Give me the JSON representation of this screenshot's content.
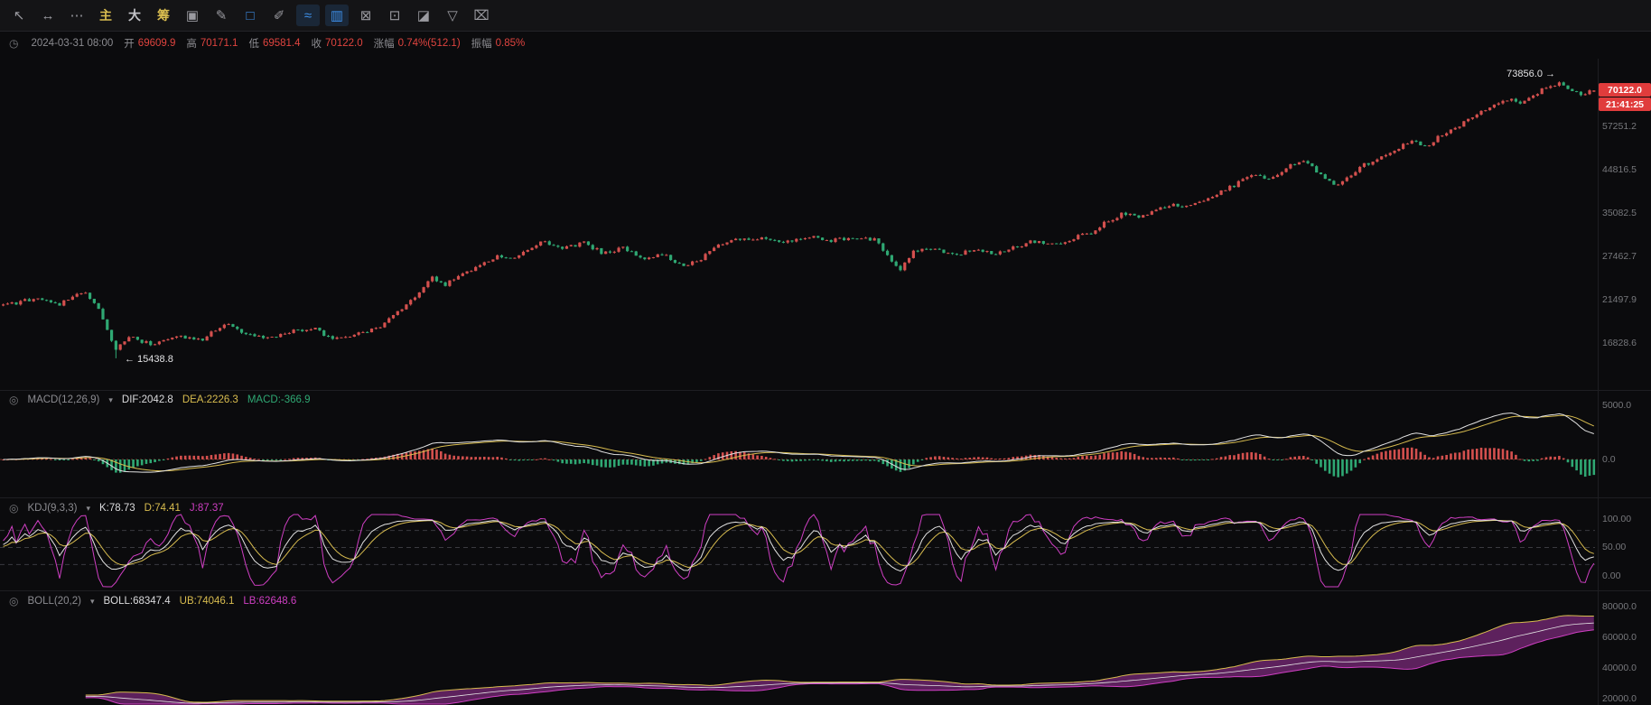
{
  "ui": {
    "eye_icon": "◎",
    "chevron_icon": "▾"
  },
  "toolbar": {
    "items": [
      {
        "name": "cursor-tool",
        "glyph": "↖"
      },
      {
        "name": "measure-tool",
        "glyph": "↔"
      },
      {
        "name": "more-tools",
        "glyph": "⋯"
      },
      {
        "name": "main-indicator-toggle",
        "glyph": "主"
      },
      {
        "name": "da-indicator-toggle",
        "glyph": "大"
      },
      {
        "name": "chips-indicator-toggle",
        "glyph": "筹"
      },
      {
        "name": "overlay-tool",
        "glyph": "▣"
      },
      {
        "name": "brush-tool",
        "glyph": "✎"
      },
      {
        "name": "select-region-tool",
        "glyph": "□"
      },
      {
        "name": "draw-line-tool",
        "glyph": "✐"
      },
      {
        "name": "wave-tool",
        "glyph": "≈"
      },
      {
        "name": "bars-tool",
        "glyph": "▥"
      },
      {
        "name": "clear-drawings-tool",
        "glyph": "⊠"
      },
      {
        "name": "export-tool",
        "glyph": "⊡"
      },
      {
        "name": "eraser-tool",
        "glyph": "◪"
      },
      {
        "name": "filter-tool",
        "glyph": "▽"
      },
      {
        "name": "trash-tool",
        "glyph": "⌧"
      }
    ]
  },
  "info_bar": {
    "time_icon": "◷",
    "datetime": "2024-03-31 08:00",
    "fields": [
      {
        "label": "开",
        "value": "69609.9"
      },
      {
        "label": "高",
        "value": "70171.1"
      },
      {
        "label": "低",
        "value": "69581.4"
      },
      {
        "label": "收",
        "value": "70122.0"
      },
      {
        "label": "涨幅",
        "value": "0.74%(512.1)"
      },
      {
        "label": "振幅",
        "value": "0.85%"
      }
    ]
  },
  "main_chart": {
    "high_annotation": "73856.0 →",
    "low_annotation": "← 15438.8",
    "price_badge": "70122.0",
    "countdown_badge": "21:41:25",
    "axis_labels": [
      "57251.2",
      "44816.5",
      "35082.5",
      "27462.7",
      "21497.9",
      "16828.6"
    ]
  },
  "macd": {
    "title": "MACD(12,26,9)",
    "dif_label": "DIF:2042.8",
    "dea_label": "DEA:2226.3",
    "macd_label": "MACD:-366.9",
    "axis_labels": [
      "5000.0",
      "0.0"
    ]
  },
  "kdj": {
    "title": "KDJ(9,3,3)",
    "k_label": "K:78.73",
    "d_label": "D:74.41",
    "j_label": "J:87.37",
    "axis_labels": [
      "100.00",
      "50.00",
      "0.00"
    ]
  },
  "boll": {
    "title": "BOLL(20,2)",
    "boll_label": "BOLL:68347.4",
    "ub_label": "UB:74046.1",
    "lb_label": "LB:62648.6",
    "axis_labels": [
      "80000.0",
      "60000.0",
      "40000.0",
      "20000.0"
    ]
  },
  "colors": {
    "up": "#d4504e",
    "down": "#2fa873",
    "accent_blue": "#3e8fe8",
    "red_text": "#e0443f",
    "yellow": "#d8bc4f",
    "magenta": "#cf3fc3",
    "white_line": "#e2e2e2",
    "band_purple": "#a335a0",
    "axis_text": "#77787c",
    "badge_red": "#e03c3c"
  },
  "chart_data": {
    "type": "candlestick",
    "scale": "log",
    "num_candles": 368,
    "seed": 123456,
    "ohlc_current": {
      "open": 69609.9,
      "high": 70171.1,
      "low": 69581.4,
      "close": 70122.0,
      "change_pct": 0.74,
      "change_abs": 512.1,
      "amplitude_pct": 0.85
    },
    "extremes": {
      "high": 73856.0,
      "low": 15438.8
    },
    "last_price": 70122.0,
    "countdown": "21:41:25",
    "price_axis": [
      57251.2,
      44816.5,
      35082.5,
      27462.7,
      21497.9,
      16828.6
    ],
    "anchors": [
      [
        0,
        20800
      ],
      [
        0.02,
        21600
      ],
      [
        0.035,
        20900
      ],
      [
        0.05,
        22400
      ],
      [
        0.058,
        21200
      ],
      [
        0.064,
        18500
      ],
      [
        0.07,
        16200
      ],
      [
        0.08,
        17400
      ],
      [
        0.095,
        16600
      ],
      [
        0.11,
        17600
      ],
      [
        0.125,
        17100
      ],
      [
        0.14,
        18900
      ],
      [
        0.15,
        17800
      ],
      [
        0.165,
        17200
      ],
      [
        0.18,
        17900
      ],
      [
        0.195,
        18300
      ],
      [
        0.205,
        17300
      ],
      [
        0.22,
        17600
      ],
      [
        0.235,
        18300
      ],
      [
        0.25,
        20300
      ],
      [
        0.262,
        22600
      ],
      [
        0.27,
        24300
      ],
      [
        0.278,
        23400
      ],
      [
        0.29,
        24900
      ],
      [
        0.3,
        26400
      ],
      [
        0.312,
        27600
      ],
      [
        0.32,
        26800
      ],
      [
        0.33,
        28800
      ],
      [
        0.34,
        29800
      ],
      [
        0.352,
        28600
      ],
      [
        0.365,
        29600
      ],
      [
        0.378,
        27900
      ],
      [
        0.39,
        28900
      ],
      [
        0.402,
        27200
      ],
      [
        0.415,
        27900
      ],
      [
        0.428,
        25900
      ],
      [
        0.436,
        26700
      ],
      [
        0.448,
        28900
      ],
      [
        0.46,
        30100
      ],
      [
        0.475,
        30400
      ],
      [
        0.49,
        29700
      ],
      [
        0.505,
        30800
      ],
      [
        0.52,
        30000
      ],
      [
        0.535,
        30700
      ],
      [
        0.548,
        30200
      ],
      [
        0.558,
        27100
      ],
      [
        0.563,
        25200
      ],
      [
        0.572,
        28100
      ],
      [
        0.585,
        28700
      ],
      [
        0.598,
        27500
      ],
      [
        0.61,
        28600
      ],
      [
        0.622,
        27800
      ],
      [
        0.635,
        28900
      ],
      [
        0.648,
        29900
      ],
      [
        0.66,
        29300
      ],
      [
        0.672,
        30400
      ],
      [
        0.684,
        31500
      ],
      [
        0.695,
        33600
      ],
      [
        0.705,
        35100
      ],
      [
        0.715,
        34300
      ],
      [
        0.725,
        35600
      ],
      [
        0.735,
        36800
      ],
      [
        0.745,
        36100
      ],
      [
        0.755,
        37900
      ],
      [
        0.765,
        39400
      ],
      [
        0.775,
        41200
      ],
      [
        0.785,
        43600
      ],
      [
        0.795,
        42400
      ],
      [
        0.805,
        44900
      ],
      [
        0.815,
        47300
      ],
      [
        0.822,
        45600
      ],
      [
        0.83,
        43100
      ],
      [
        0.838,
        40600
      ],
      [
        0.845,
        42900
      ],
      [
        0.855,
        45900
      ],
      [
        0.865,
        47800
      ],
      [
        0.875,
        50300
      ],
      [
        0.885,
        52600
      ],
      [
        0.895,
        51200
      ],
      [
        0.905,
        54800
      ],
      [
        0.915,
        57600
      ],
      [
        0.925,
        60400
      ],
      [
        0.935,
        63900
      ],
      [
        0.945,
        66900
      ],
      [
        0.955,
        64900
      ],
      [
        0.962,
        68400
      ],
      [
        0.97,
        71300
      ],
      [
        0.978,
        72900
      ],
      [
        0.985,
        69900
      ],
      [
        0.992,
        68600
      ],
      [
        1,
        70122
      ]
    ],
    "indicators": {
      "macd": {
        "params": [
          12,
          26,
          9
        ],
        "dif": 2042.8,
        "dea": 2226.3,
        "macd": -366.9,
        "axis_range": [
          5000.0,
          0.0
        ]
      },
      "kdj": {
        "params": [
          9,
          3,
          3
        ],
        "k": 78.73,
        "d": 74.41,
        "j": 87.37,
        "axis_range": [
          100,
          50,
          0
        ]
      },
      "boll": {
        "params": [
          20,
          2
        ],
        "mid": 68347.4,
        "ub": 74046.1,
        "lb": 62648.6,
        "axis_range": [
          80000,
          60000,
          40000,
          20000
        ]
      }
    }
  }
}
